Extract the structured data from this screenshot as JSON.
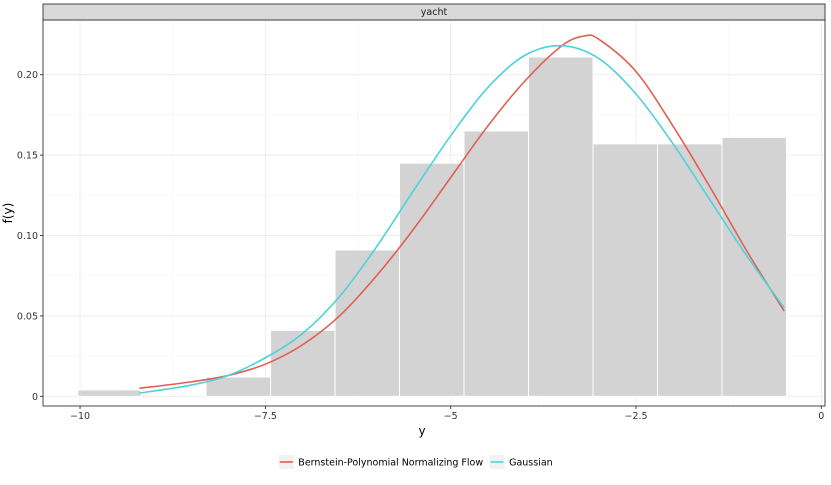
{
  "chart_data": {
    "type": "histogram_with_density_lines",
    "facet_label": "yacht",
    "xlabel": "y",
    "ylabel": "f(y)",
    "xlim": [
      -10.5,
      0.05
    ],
    "ylim": [
      -0.006,
      0.234
    ],
    "x_ticks": [
      -10,
      -7.5,
      -5,
      -2.5,
      0
    ],
    "x_tick_labels": [
      "−10",
      "−7.5",
      "−5",
      "−2.5",
      "0"
    ],
    "y_ticks": [
      0,
      0.05,
      0.1,
      0.15,
      0.2
    ],
    "y_tick_labels": [
      "0",
      "0.05",
      "0.10",
      "0.15",
      "0.20"
    ],
    "grid": true,
    "legend_position": "bottom",
    "bars": {
      "color": "#d3d3d3",
      "bins": [
        {
          "x0": -10.03,
          "x1": -9.18,
          "value": 0.004
        },
        {
          "x0": -9.18,
          "x1": -8.3,
          "value": 0.0
        },
        {
          "x0": -8.3,
          "x1": -7.43,
          "value": 0.012
        },
        {
          "x0": -7.43,
          "x1": -6.56,
          "value": 0.041
        },
        {
          "x0": -6.56,
          "x1": -5.69,
          "value": 0.091
        },
        {
          "x0": -5.69,
          "x1": -4.82,
          "value": 0.145
        },
        {
          "x0": -4.82,
          "x1": -3.95,
          "value": 0.165
        },
        {
          "x0": -3.95,
          "x1": -3.08,
          "value": 0.211
        },
        {
          "x0": -3.08,
          "x1": -2.21,
          "value": 0.157
        },
        {
          "x0": -2.21,
          "x1": -1.34,
          "value": 0.157
        },
        {
          "x0": -1.34,
          "x1": -0.47,
          "value": 0.161
        }
      ]
    },
    "series": [
      {
        "name": "Bernstein-Polynomial Normalizing Flow",
        "color": "#e06050",
        "x": [
          -9.2,
          -8.5,
          -8.0,
          -7.5,
          -7.0,
          -6.5,
          -6.0,
          -5.5,
          -5.0,
          -4.5,
          -4.0,
          -3.5,
          -3.2,
          -3.0,
          -2.5,
          -2.0,
          -1.5,
          -1.0,
          -0.5
        ],
        "y": [
          0.005,
          0.009,
          0.013,
          0.02,
          0.032,
          0.05,
          0.075,
          0.104,
          0.136,
          0.168,
          0.196,
          0.218,
          0.224,
          0.222,
          0.202,
          0.168,
          0.13,
          0.09,
          0.053
        ]
      },
      {
        "name": "Gaussian",
        "color": "#4fd1dc",
        "x": [
          -9.2,
          -8.5,
          -8.0,
          -7.5,
          -7.0,
          -6.5,
          -6.0,
          -5.5,
          -5.0,
          -4.5,
          -4.0,
          -3.5,
          -3.0,
          -2.5,
          -2.0,
          -1.5,
          -1.0,
          -0.5
        ],
        "y": [
          0.002,
          0.007,
          0.013,
          0.024,
          0.039,
          0.062,
          0.093,
          0.128,
          0.162,
          0.192,
          0.212,
          0.218,
          0.21,
          0.188,
          0.157,
          0.122,
          0.087,
          0.055
        ]
      }
    ]
  }
}
